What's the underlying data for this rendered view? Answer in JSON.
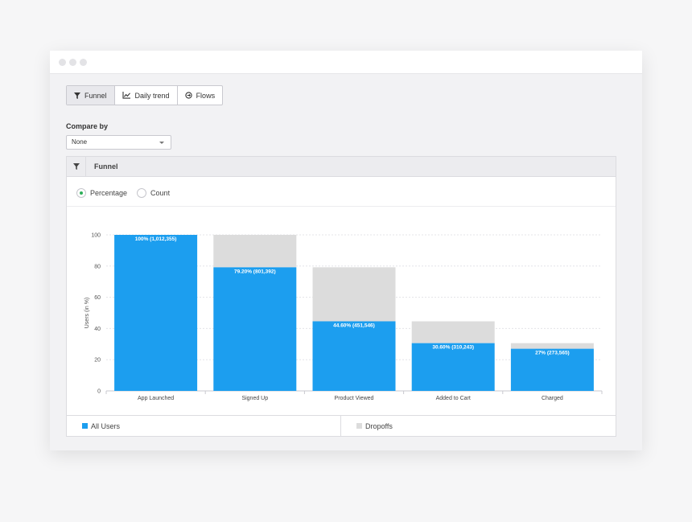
{
  "tabs": [
    {
      "label": "Funnel",
      "icon": "funnel-icon",
      "active": true
    },
    {
      "label": "Daily trend",
      "icon": "trend-chart-icon",
      "active": false
    },
    {
      "label": "Flows",
      "icon": "flows-icon",
      "active": false
    }
  ],
  "compare": {
    "label": "Compare by",
    "value": "None"
  },
  "panel": {
    "title": "Funnel",
    "icon": "funnel-icon"
  },
  "mode": {
    "percentage_label": "Percentage",
    "count_label": "Count",
    "selected": "percentage"
  },
  "chart_data": {
    "type": "bar",
    "stacked": true,
    "categories": [
      "App Launched",
      "Signed Up",
      "Product Viewed",
      "Added to Cart",
      "Charged"
    ],
    "series": [
      {
        "name": "All Users",
        "values": [
          100,
          79.2,
          44.6,
          30.6,
          27
        ],
        "color": "#1c9eef"
      },
      {
        "name": "Dropoffs",
        "values": [
          0,
          20.8,
          34.6,
          14.0,
          3.6
        ],
        "color": "#dcdcdc"
      }
    ],
    "data_labels": [
      "100% (1,012,355)",
      "79.20% (801,392)",
      "44.60% (451,546)",
      "30.60% (310,243)",
      "27% (273,565)"
    ],
    "ylabel": "Users (in %)",
    "ylim": [
      0,
      100
    ],
    "yticks": [
      0,
      20,
      40,
      60,
      80,
      100
    ],
    "grid": true,
    "legend_position": "bottom"
  },
  "colors": {
    "accent": "#1c9eef",
    "dropoff": "#dcdcdc",
    "radio_on": "#2eaf5a"
  }
}
